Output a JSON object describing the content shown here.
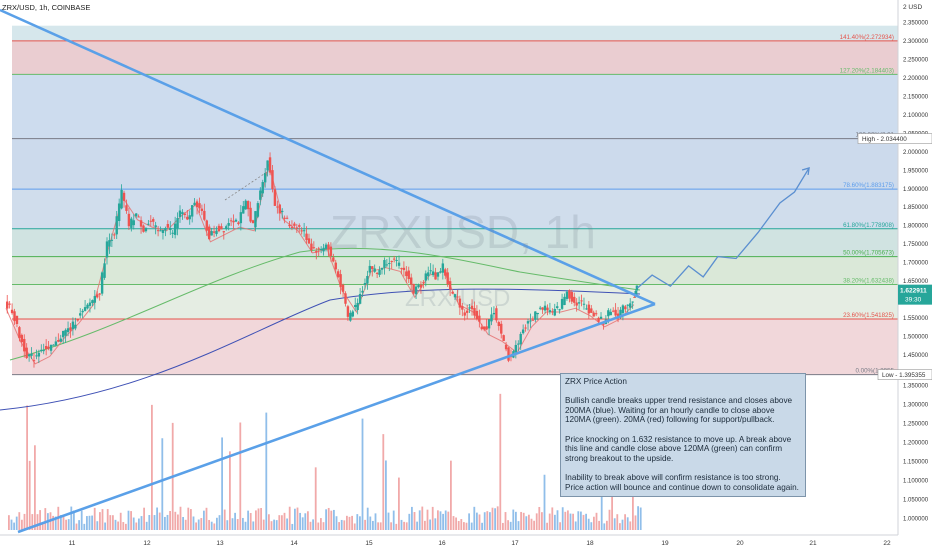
{
  "header": {
    "symbol": "ZRX/USD, 1h, COINBASE"
  },
  "watermark": {
    "big": "ZRXUSD, 1h",
    "small": "ZRX/USD"
  },
  "price_axis": {
    "currency": "USD",
    "ticks": [
      "2.350000",
      "2.300000",
      "2.250000",
      "2.200000",
      "2.150000",
      "2.100000",
      "2.050000",
      "2.000000",
      "1.950000",
      "1.900000",
      "1.850000",
      "1.800000",
      "1.750000",
      "1.700000",
      "1.650000",
      "1.600000",
      "1.550000",
      "1.500000",
      "1.450000",
      "1.400000",
      "1.350000",
      "1.300000",
      "1.250000",
      "1.200000",
      "1.150000",
      "1.100000",
      "1.050000",
      "1.000000"
    ],
    "high_label": "High",
    "high_value": "2.034400",
    "low_label": "Low",
    "low_value": "1.395355",
    "last_price": "1.622911",
    "countdown": "39:30"
  },
  "time_axis": {
    "labels": [
      "11",
      "12",
      "13",
      "14",
      "15",
      "16",
      "17",
      "18",
      "19",
      "20",
      "21",
      "22"
    ]
  },
  "fib_levels": [
    {
      "ratio": 1.414,
      "label": "141.40%(2.272934)",
      "color": "#e5534b"
    },
    {
      "ratio": 1.272,
      "label": "127.20%(2.184403)",
      "color": "#66bb6a"
    },
    {
      "ratio": 1.0,
      "label": "100.00%(2.01",
      "color": "#787b86"
    },
    {
      "ratio": 0.786,
      "label": "78.60%(1.883175)",
      "color": "#5c9ded"
    },
    {
      "ratio": 0.618,
      "label": "61.80%(1.778908)",
      "color": "#26a69a"
    },
    {
      "ratio": 0.5,
      "label": "50.00%(1.705673)",
      "color": "#4caf50"
    },
    {
      "ratio": 0.382,
      "label": "38.20%(1.632438)",
      "color": "#66bb6a"
    },
    {
      "ratio": 0.236,
      "label": "23.60%(1.541825)",
      "color": "#e5534b"
    },
    {
      "ratio": 0.0,
      "label": "0.00%(1.3955",
      "color": "#787b86"
    }
  ],
  "note": {
    "title": "ZRX Price Action",
    "p1": "Bullish candle breaks upper trend resistance and closes above 200MA (blue). Waiting for an hourly candle to close above 120MA (green). 20MA (red) following for support/pullback.",
    "p2": "Price knocking on 1.632 resistance to move up. A break above this line and candle close above 120MA (green) can confirm strong breakout to the upside.",
    "p3": "Inability to break above will confirm resistance is too strong. Price action will bounce and continue down to consolidate again."
  },
  "colors": {
    "up": "#26a69a",
    "down": "#ef5350",
    "trend": "#5aa0e8",
    "ma20": "#e57373",
    "ma120": "#66bb6a",
    "ma200": "#3f51b5"
  },
  "chart_data": {
    "type": "candlestick",
    "title": "ZRX/USD, 1h, COINBASE",
    "x_unit": "day",
    "xlim": [
      10.0,
      22.3
    ],
    "ylim": [
      1.38,
      2.37
    ],
    "volume_axis_range": [
      0.95,
      1.45
    ],
    "candles_hourly_close_approx": [
      [
        10.0,
        1.59
      ],
      [
        10.1,
        1.57
      ],
      [
        10.2,
        1.5
      ],
      [
        10.3,
        1.45
      ],
      [
        10.4,
        1.44
      ],
      [
        10.5,
        1.47
      ],
      [
        10.6,
        1.46
      ],
      [
        10.7,
        1.48
      ],
      [
        10.8,
        1.51
      ],
      [
        10.9,
        1.52
      ],
      [
        11.0,
        1.55
      ],
      [
        11.1,
        1.57
      ],
      [
        11.2,
        1.6
      ],
      [
        11.3,
        1.62
      ],
      [
        11.4,
        1.75
      ],
      [
        11.5,
        1.78
      ],
      [
        11.6,
        1.89
      ],
      [
        11.7,
        1.8
      ],
      [
        11.8,
        1.83
      ],
      [
        11.9,
        1.79
      ],
      [
        12.0,
        1.81
      ],
      [
        12.1,
        1.78
      ],
      [
        12.2,
        1.8
      ],
      [
        12.3,
        1.78
      ],
      [
        12.4,
        1.84
      ],
      [
        12.5,
        1.81
      ],
      [
        12.6,
        1.87
      ],
      [
        12.7,
        1.83
      ],
      [
        12.8,
        1.77
      ],
      [
        12.9,
        1.79
      ],
      [
        13.0,
        1.79
      ],
      [
        13.1,
        1.82
      ],
      [
        13.2,
        1.81
      ],
      [
        13.3,
        1.86
      ],
      [
        13.4,
        1.8
      ],
      [
        13.5,
        1.89
      ],
      [
        13.6,
        1.98
      ],
      [
        13.7,
        1.86
      ],
      [
        13.8,
        1.83
      ],
      [
        13.9,
        1.8
      ],
      [
        14.0,
        1.8
      ],
      [
        14.1,
        1.78
      ],
      [
        14.2,
        1.74
      ],
      [
        14.3,
        1.73
      ],
      [
        14.4,
        1.75
      ],
      [
        14.5,
        1.7
      ],
      [
        14.6,
        1.64
      ],
      [
        14.7,
        1.55
      ],
      [
        14.8,
        1.58
      ],
      [
        14.9,
        1.63
      ],
      [
        15.0,
        1.69
      ],
      [
        15.1,
        1.67
      ],
      [
        15.2,
        1.7
      ],
      [
        15.3,
        1.71
      ],
      [
        15.4,
        1.69
      ],
      [
        15.5,
        1.67
      ],
      [
        15.6,
        1.62
      ],
      [
        15.7,
        1.64
      ],
      [
        15.8,
        1.68
      ],
      [
        15.9,
        1.66
      ],
      [
        16.0,
        1.69
      ],
      [
        16.1,
        1.62
      ],
      [
        16.2,
        1.6
      ],
      [
        16.3,
        1.56
      ],
      [
        16.4,
        1.58
      ],
      [
        16.5,
        1.53
      ],
      [
        16.6,
        1.52
      ],
      [
        16.7,
        1.57
      ],
      [
        16.8,
        1.5
      ],
      [
        16.9,
        1.44
      ],
      [
        17.0,
        1.47
      ],
      [
        17.1,
        1.52
      ],
      [
        17.2,
        1.54
      ],
      [
        17.3,
        1.57
      ],
      [
        17.4,
        1.58
      ],
      [
        17.5,
        1.56
      ],
      [
        17.6,
        1.58
      ],
      [
        17.7,
        1.62
      ],
      [
        17.8,
        1.59
      ],
      [
        17.9,
        1.59
      ],
      [
        18.0,
        1.57
      ],
      [
        18.1,
        1.55
      ],
      [
        18.2,
        1.54
      ],
      [
        18.3,
        1.57
      ],
      [
        18.4,
        1.56
      ],
      [
        18.5,
        1.58
      ],
      [
        18.6,
        1.6
      ],
      [
        18.65,
        1.63
      ]
    ],
    "projection_path": [
      [
        18.65,
        1.63
      ],
      [
        18.85,
        1.665
      ],
      [
        19.1,
        1.635
      ],
      [
        19.35,
        1.69
      ],
      [
        19.55,
        1.66
      ],
      [
        19.75,
        1.715
      ],
      [
        20.0,
        1.71
      ],
      [
        20.3,
        1.78
      ],
      [
        20.6,
        1.86
      ],
      [
        20.8,
        1.89
      ],
      [
        21.0,
        1.955
      ]
    ],
    "trendlines": [
      {
        "name": "upper resistance",
        "from": [
          10.0,
          2.37
        ],
        "to": [
          18.85,
          1.565
        ]
      },
      {
        "name": "lower support",
        "from": [
          10.35,
          0.95
        ],
        "to": [
          18.85,
          1.565
        ]
      }
    ],
    "moving_averages": [
      "20MA (red)",
      "120MA (green)",
      "200MA (blue)"
    ]
  }
}
